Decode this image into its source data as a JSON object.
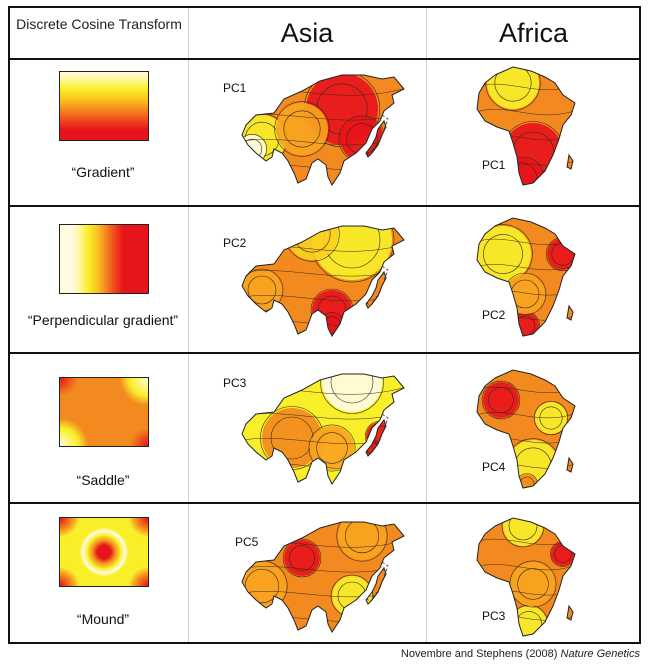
{
  "headers": {
    "dct": "Discrete Cosine Transform",
    "asia": "Asia",
    "africa": "Africa"
  },
  "rows": [
    {
      "pattern": "gradient",
      "label": "“Gradient”",
      "asia_pc": "PC1",
      "africa_pc": "PC1"
    },
    {
      "pattern": "perpendicular",
      "label": "“Perpendicular gradient”",
      "asia_pc": "PC2",
      "africa_pc": "PC2"
    },
    {
      "pattern": "saddle",
      "label": "“Saddle”",
      "asia_pc": "PC3",
      "africa_pc": "PC4"
    },
    {
      "pattern": "mound",
      "label": "“Mound”",
      "asia_pc": "PC5",
      "africa_pc": "PC3"
    }
  ],
  "credit": {
    "authors": "Novembre and Stephens (2008)",
    "journal": "Nature Genetics"
  },
  "colors": {
    "red": "#e8141b",
    "orange": "#f38a1f",
    "yellow": "#f8ef2a",
    "cream": "#fffbe0"
  }
}
